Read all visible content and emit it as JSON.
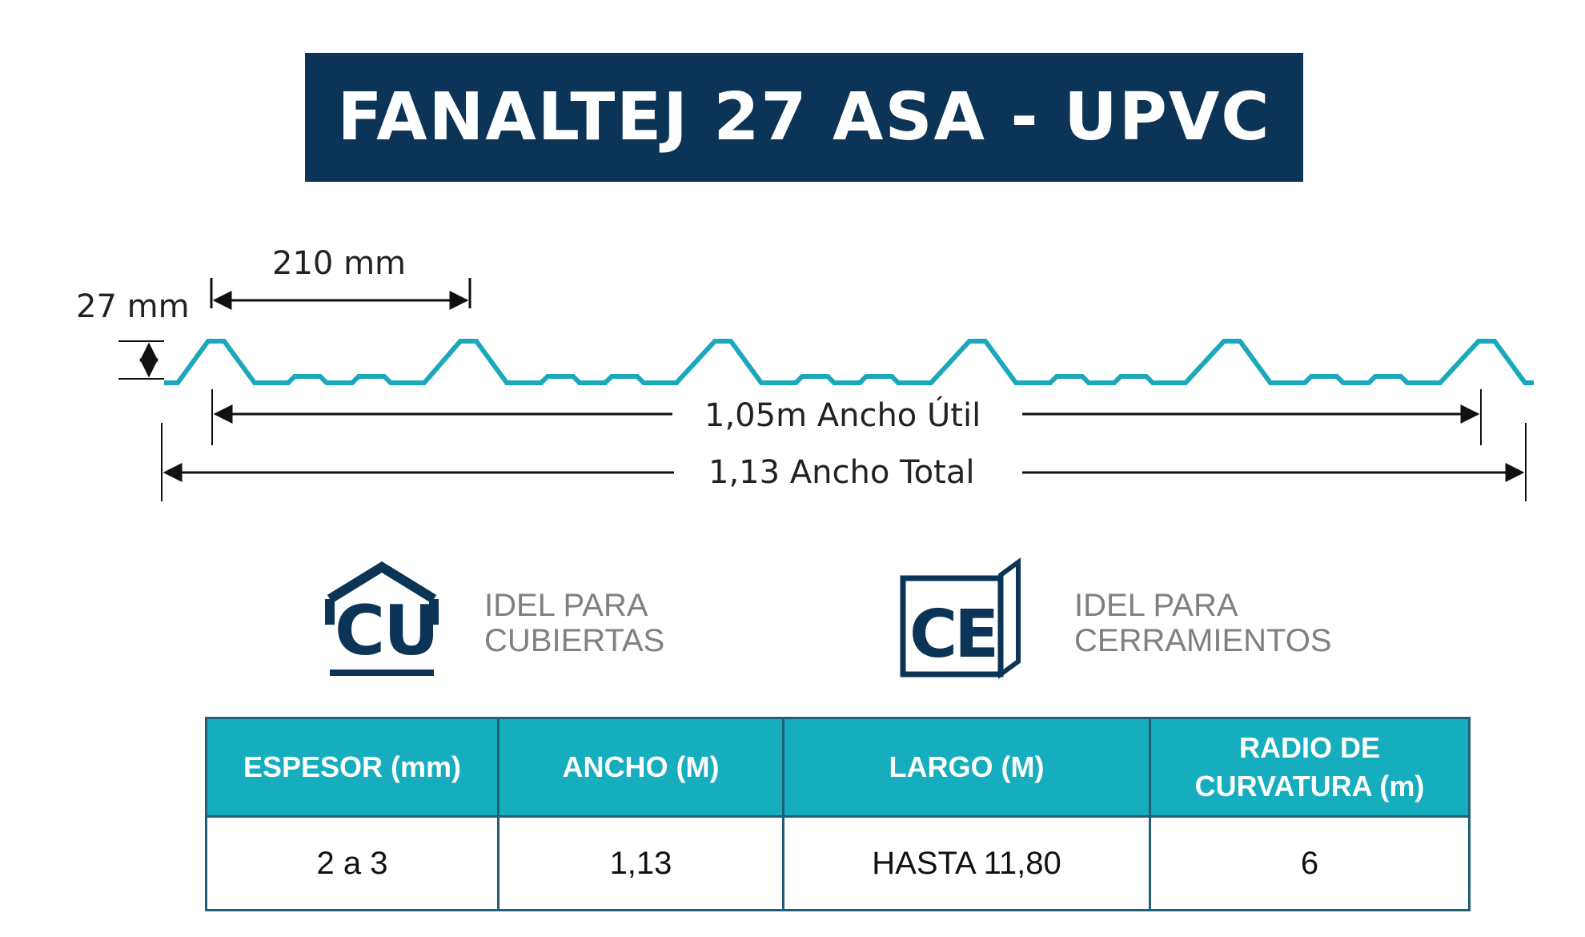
{
  "header": {
    "title": "FANALTEJ 27 ASA - UPVC"
  },
  "profile": {
    "pitch_label": "210 mm",
    "height_label": "27 mm",
    "useful_width_label": "1,05m Ancho Útil",
    "total_width_label": "1,13 Ancho Total"
  },
  "features": [
    {
      "icon_text": "CU",
      "line1": "IDEL PARA",
      "line2": "CUBIERTAS"
    },
    {
      "icon_text": "CE",
      "line1": "IDEL PARA",
      "line2": "CERRAMIENTOS"
    }
  ],
  "table": {
    "headers": [
      "ESPESOR (mm)",
      "ANCHO (M)",
      "LARGO (M)",
      "RADIO DE CURVATURA (m)"
    ],
    "header_lines": {
      "radio_line1": "RADIO DE",
      "radio_line2": "CURVATURA (m)"
    },
    "rows": [
      [
        "2 a 3",
        "1,13",
        "HASTA 11,80",
        "6"
      ]
    ]
  },
  "colors": {
    "navy": "#0b3457",
    "teal": "#16adbf",
    "profile_line": "#1ba8bb",
    "border": "#1f6076"
  }
}
